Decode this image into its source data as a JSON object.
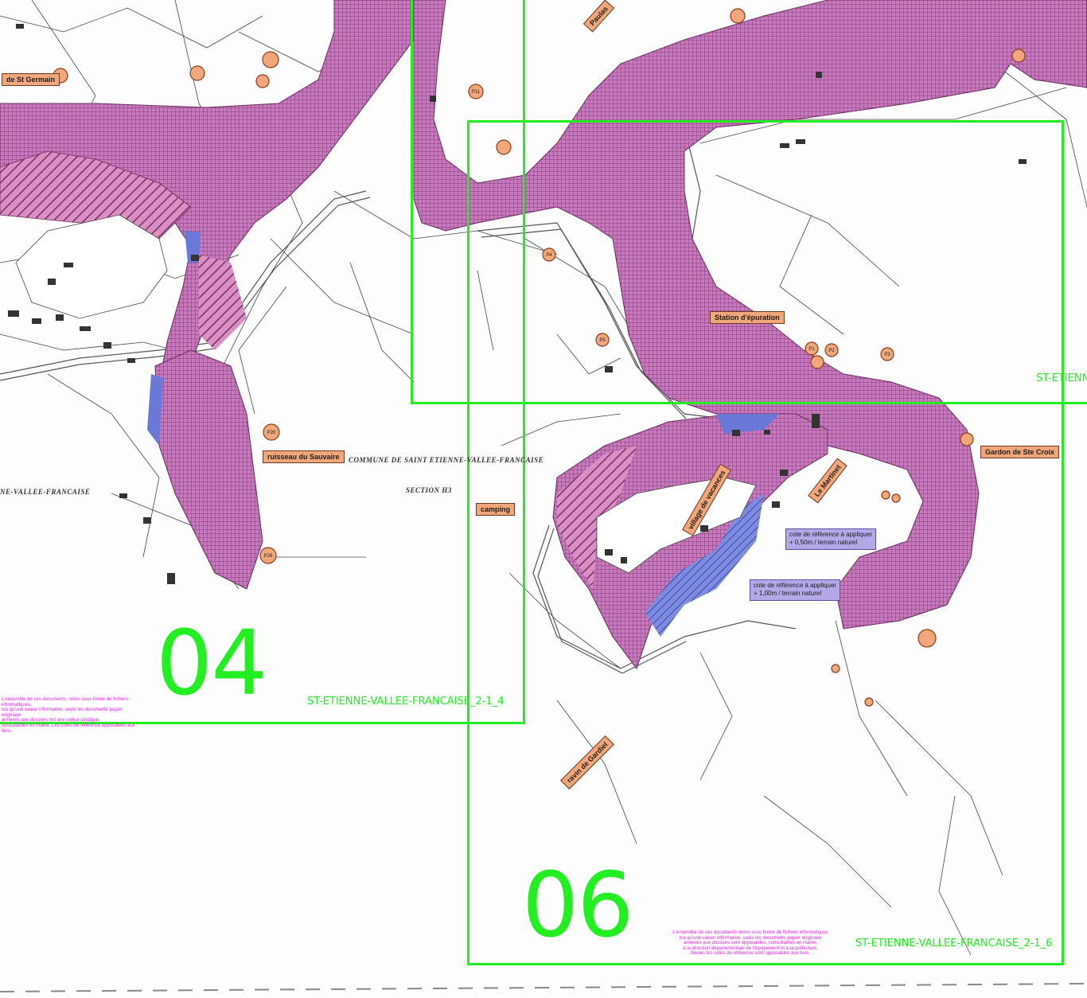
{
  "labels": {
    "st_germain": "de St Germain",
    "ruisseau": "ruisseau du Sauvaire",
    "station": "Station d'épuration",
    "camping": "camping",
    "gardon": "Gardon de Ste Croix",
    "le_martinet": "Le Martinet",
    "village": "village de vacances",
    "ravin": "ravin de Gardiel",
    "haut_top": "Paulas"
  },
  "cote_boxes": {
    "cote1_line1": "cote de référence à appliquer",
    "cote1_line2": "+ 0,50m / terrain naturel",
    "cote2_line1": "cote de référence à appliquer",
    "cote2_line2": "+ 1,00m / terrain naturel"
  },
  "commune": {
    "title": "COMMUNE DE SAINT ETIENNE-VALLEE-FRANCAISE",
    "section": "SECTION H3",
    "left_fragment": "NE-VALLEE-FRANCAISE"
  },
  "tiles": {
    "t04": {
      "number": "04",
      "code": "ST-ETIENNE-VALLEE-FRANCAISE_2-1_4"
    },
    "t06": {
      "number": "06",
      "code": "ST-ETIENNE-VALLEE-FRANCAISE_2-1_6"
    },
    "t05_code": "ST-ETIENN"
  },
  "disclaimer": {
    "left": "L'ensemble de ces documents, remis sous forme de fichiers informatiques,\nn'a qu'une valeur informative, seuls les documents papier originaux\nannexés aux dossiers ont une valeur juridique,\nconsultables en mairie. Les cotes de référence opposables aux tiers.",
    "right": "L'ensemble de ces documents remis sous forme de fichiers informatiques\nn'a qu'une valeur informative, seuls les documents papier originaux\nannexés aux dossiers sont opposables, consultables en mairie,\nà la direction départementale de l'équipement et à la préfecture.\nSeules les cotes de référence sont opposables aux tiers."
  },
  "point_markers": [
    "P1",
    "P2",
    "P3",
    "P4",
    "P5",
    "P11",
    "P20",
    "P26"
  ],
  "colors": {
    "tile_frame": "#22ee22",
    "flood_zone": "#c86ab4",
    "flood_zone_dark": "#a44b9a",
    "blue_zone": "#6a78d8",
    "label_orange": "#f2a77a",
    "label_violet": "#b4a8e8",
    "disclaimer": "#e020e0"
  }
}
